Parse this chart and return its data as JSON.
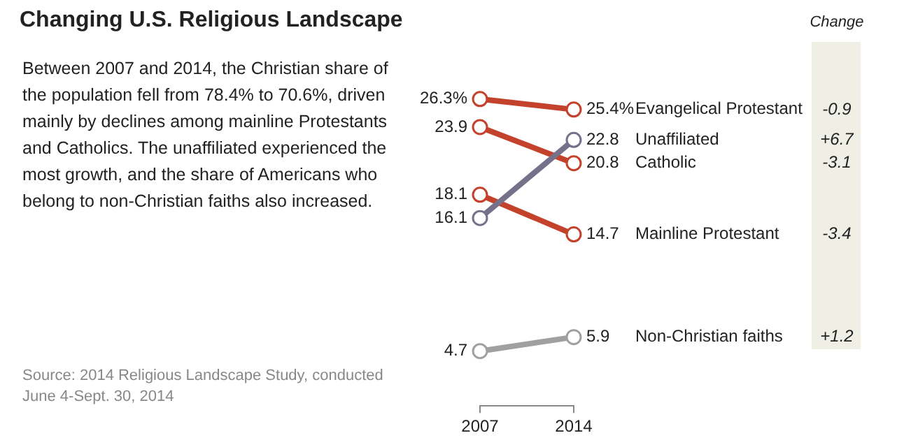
{
  "chart_data": {
    "type": "line",
    "title": "Changing U.S. Religious Landscape",
    "subtitle": "Between 2007 and 2014, the Christian share of the population fell from 78.4% to 70.6%, driven mainly by declines among mainline Protestants and Catholics. The unaffiliated experienced the most growth, and the share of Americans who belong to non-Christian faiths also increased.",
    "categories": [
      "2007",
      "2014"
    ],
    "legend": false,
    "marker": "circle",
    "legend_title": "Change",
    "series": [
      {
        "name": "Evangelical Protestant",
        "color": "#c4422b",
        "values": [
          26.3,
          25.4
        ],
        "value_labels": [
          "26.3%",
          "25.4%"
        ]
      },
      {
        "name": "Unaffiliated",
        "color": "#77708a",
        "values": [
          16.1,
          22.8
        ],
        "value_labels": [
          "16.1",
          "22.8"
        ]
      },
      {
        "name": "Catholic",
        "color": "#c4422b",
        "values": [
          23.9,
          20.8
        ],
        "value_labels": [
          "23.9",
          "20.8"
        ]
      },
      {
        "name": "Mainline Protestant",
        "color": "#c4422b",
        "values": [
          18.1,
          14.7
        ],
        "value_labels": [
          "18.1",
          "14.7"
        ]
      },
      {
        "name": "Non-Christian faiths",
        "color": "#a0a0a0",
        "values": [
          4.7,
          5.9
        ],
        "value_labels": [
          "4.7",
          "5.9"
        ]
      }
    ],
    "annotations": [
      "Source: 2014 Religious Landscape Study, conducted June 4-Sept. 30, 2014",
      "-0.9",
      "+6.7",
      "-3.1",
      "-3.4",
      "+1.2"
    ]
  }
}
